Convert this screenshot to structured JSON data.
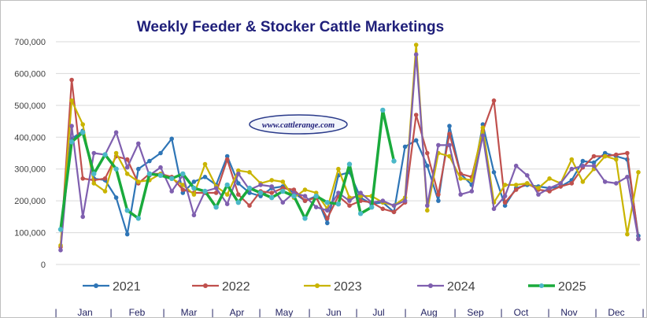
{
  "chart_data": {
    "type": "line",
    "title": "Weekly Feeder & Stocker Cattle Marketings",
    "xlabel": "",
    "ylabel": "",
    "ylim": [
      0,
      700000
    ],
    "yticks": [
      "0",
      "100,000",
      "200,000",
      "300,000",
      "400,000",
      "500,000",
      "600,000",
      "700,000"
    ],
    "y_tick_values": [
      0,
      100000,
      200000,
      300000,
      400000,
      500000,
      600000,
      700000
    ],
    "months": [
      "Jan",
      "Feb",
      "Mar",
      "Apr",
      "May",
      "Jun",
      "Jul",
      "Aug",
      "Sep",
      "Oct",
      "Nov",
      "Dec"
    ],
    "month_separator": "|",
    "grid": "horizontal",
    "legend_position": "bottom",
    "watermark": "www.cattlerange.com",
    "weeks": 53,
    "series": [
      {
        "name": "2021",
        "color": "#2e75b6",
        "highlight": false,
        "values": [
          110000,
          395000,
          420000,
          270000,
          265000,
          210000,
          95000,
          300000,
          325000,
          350000,
          395000,
          225000,
          260000,
          275000,
          250000,
          340000,
          255000,
          225000,
          215000,
          240000,
          245000,
          225000,
          200000,
          215000,
          130000,
          280000,
          290000,
          210000,
          190000,
          195000,
          165000,
          370000,
          390000,
          310000,
          200000,
          435000,
          285000,
          250000,
          440000,
          290000,
          185000,
          240000,
          250000,
          245000,
          240000,
          245000,
          265000,
          325000,
          320000,
          350000,
          340000,
          330000,
          90000
        ]
      },
      {
        "name": "2022",
        "color": "#c0504d",
        "highlight": false,
        "values": [
          55000,
          580000,
          270000,
          265000,
          270000,
          340000,
          330000,
          255000,
          285000,
          285000,
          275000,
          235000,
          225000,
          225000,
          225000,
          330000,
          220000,
          185000,
          230000,
          225000,
          240000,
          235000,
          200000,
          210000,
          145000,
          215000,
          185000,
          200000,
          195000,
          175000,
          165000,
          195000,
          470000,
          350000,
          220000,
          410000,
          285000,
          275000,
          420000,
          515000,
          195000,
          235000,
          255000,
          235000,
          230000,
          245000,
          255000,
          305000,
          340000,
          340000,
          345000,
          350000,
          80000
        ]
      },
      {
        "name": "2023",
        "color": "#c9b400",
        "highlight": false,
        "values": [
          60000,
          515000,
          440000,
          255000,
          230000,
          350000,
          285000,
          260000,
          265000,
          285000,
          270000,
          250000,
          220000,
          315000,
          245000,
          220000,
          295000,
          290000,
          255000,
          265000,
          260000,
          210000,
          235000,
          225000,
          175000,
          300000,
          210000,
          215000,
          215000,
          195000,
          185000,
          210000,
          690000,
          170000,
          350000,
          340000,
          270000,
          265000,
          430000,
          195000,
          250000,
          250000,
          255000,
          240000,
          270000,
          255000,
          330000,
          260000,
          300000,
          340000,
          330000,
          95000,
          290000
        ]
      },
      {
        "name": "2024",
        "color": "#7f5faf",
        "highlight": false,
        "values": [
          45000,
          435000,
          150000,
          350000,
          345000,
          415000,
          305000,
          380000,
          280000,
          305000,
          230000,
          280000,
          155000,
          230000,
          240000,
          190000,
          285000,
          235000,
          250000,
          245000,
          195000,
          225000,
          215000,
          180000,
          170000,
          225000,
          200000,
          225000,
          195000,
          200000,
          185000,
          200000,
          660000,
          185000,
          375000,
          375000,
          220000,
          230000,
          405000,
          175000,
          215000,
          310000,
          280000,
          220000,
          240000,
          255000,
          300000,
          310000,
          310000,
          260000,
          255000,
          275000,
          80000
        ]
      },
      {
        "name": "2025",
        "color": "#1aaa3c",
        "highlight": true,
        "values": [
          110000,
          385000,
          415000,
          285000,
          345000,
          300000,
          170000,
          145000,
          285000,
          280000,
          270000,
          285000,
          240000,
          230000,
          180000,
          250000,
          195000,
          240000,
          225000,
          210000,
          230000,
          215000,
          145000,
          215000,
          195000,
          190000,
          315000,
          160000,
          180000,
          485000,
          325000
        ]
      }
    ]
  }
}
